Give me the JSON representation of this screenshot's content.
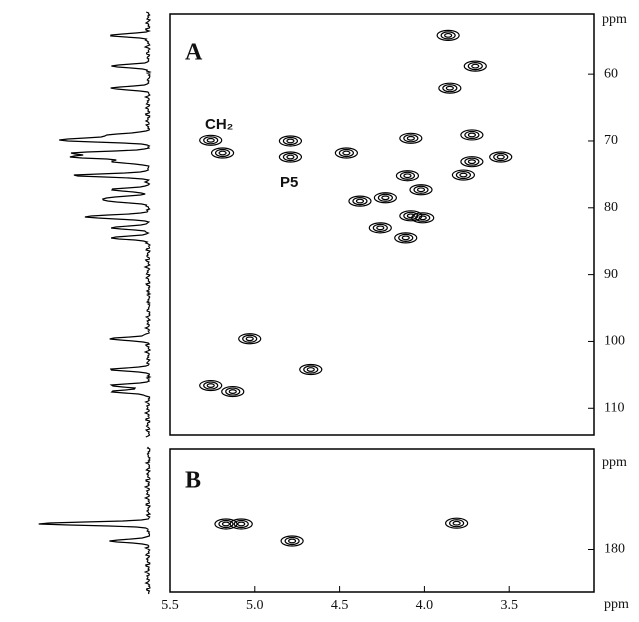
{
  "chart_data": [
    {
      "type": "scatter",
      "label": "A",
      "annotations": [
        "CH₂",
        "P5"
      ],
      "y_label": "ppm",
      "xlim": [
        5.5,
        3.0
      ],
      "ylim": [
        51,
        114
      ],
      "yticks": [
        60,
        70,
        80,
        90,
        100,
        110
      ],
      "x": [
        3.86,
        3.85,
        3.7,
        4.08,
        3.72,
        3.55,
        3.72,
        3.77,
        5.19,
        5.26,
        4.79,
        4.79,
        4.46,
        4.1,
        4.02,
        4.38,
        4.08,
        4.23,
        4.26,
        4.01,
        4.11,
        5.03,
        5.26,
        5.13,
        4.67
      ],
      "y": [
        54.2,
        62.1,
        58.8,
        69.6,
        69.1,
        72.4,
        73.1,
        75.1,
        71.8,
        69.9,
        72.4,
        70.0,
        71.8,
        75.2,
        77.3,
        79.0,
        81.2,
        78.5,
        83.0,
        81.5,
        84.5,
        99.6,
        106.6,
        107.5,
        104.2
      ]
    },
    {
      "type": "scatter",
      "label": "B",
      "y_label": "ppm",
      "x_label": "ppm",
      "xlim": [
        5.5,
        3.0
      ],
      "ylim": [
        167,
        185.5
      ],
      "yticks": [
        180
      ],
      "xticks": [
        5.5,
        {
          "value": 5,
          "label": "5.0"
        },
        4.5,
        {
          "value": 4,
          "label": "4.0"
        },
        3.5
      ],
      "x": [
        5.17,
        5.08,
        4.78,
        3.81
      ],
      "y": [
        176.7,
        176.7,
        178.9,
        176.6
      ]
    }
  ]
}
